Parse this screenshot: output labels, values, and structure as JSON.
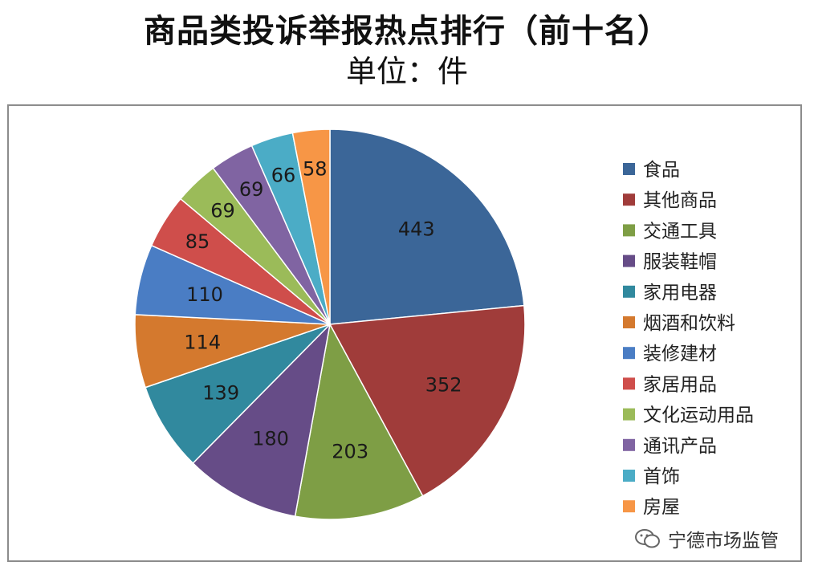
{
  "header": {
    "title": "商品类投诉举报热点排行（前十名）",
    "subtitle": "单位：件"
  },
  "watermark": {
    "text": "宁德市场监管",
    "icon": "wechat-icon"
  },
  "chart_data": {
    "type": "pie",
    "title": "商品类投诉举报热点排行（前十名）",
    "unit": "单位：件",
    "legend_position": "right",
    "slices": [
      {
        "name": "食品",
        "value": 443,
        "color": "#3B6698"
      },
      {
        "name": "其他商品",
        "value": 352,
        "color": "#A03C3A"
      },
      {
        "name": "交通工具",
        "value": 203,
        "color": "#7E9E45"
      },
      {
        "name": "服装鞋帽",
        "value": 180,
        "color": "#664C87"
      },
      {
        "name": "家用电器",
        "value": 139,
        "color": "#31899E"
      },
      {
        "name": "烟酒和饮料",
        "value": 114,
        "color": "#D4792E"
      },
      {
        "name": "装修建材",
        "value": 110,
        "color": "#4A7DC4"
      },
      {
        "name": "家居用品",
        "value": 85,
        "color": "#CF4E4B"
      },
      {
        "name": "文化运动用品",
        "value": 69,
        "color": "#9BBB59"
      },
      {
        "name": "通讯产品",
        "value": 69,
        "color": "#8064A2"
      },
      {
        "name": "首饰",
        "value": 66,
        "color": "#4BACC6"
      },
      {
        "name": "房屋",
        "value": 58,
        "color": "#F79646"
      }
    ]
  }
}
